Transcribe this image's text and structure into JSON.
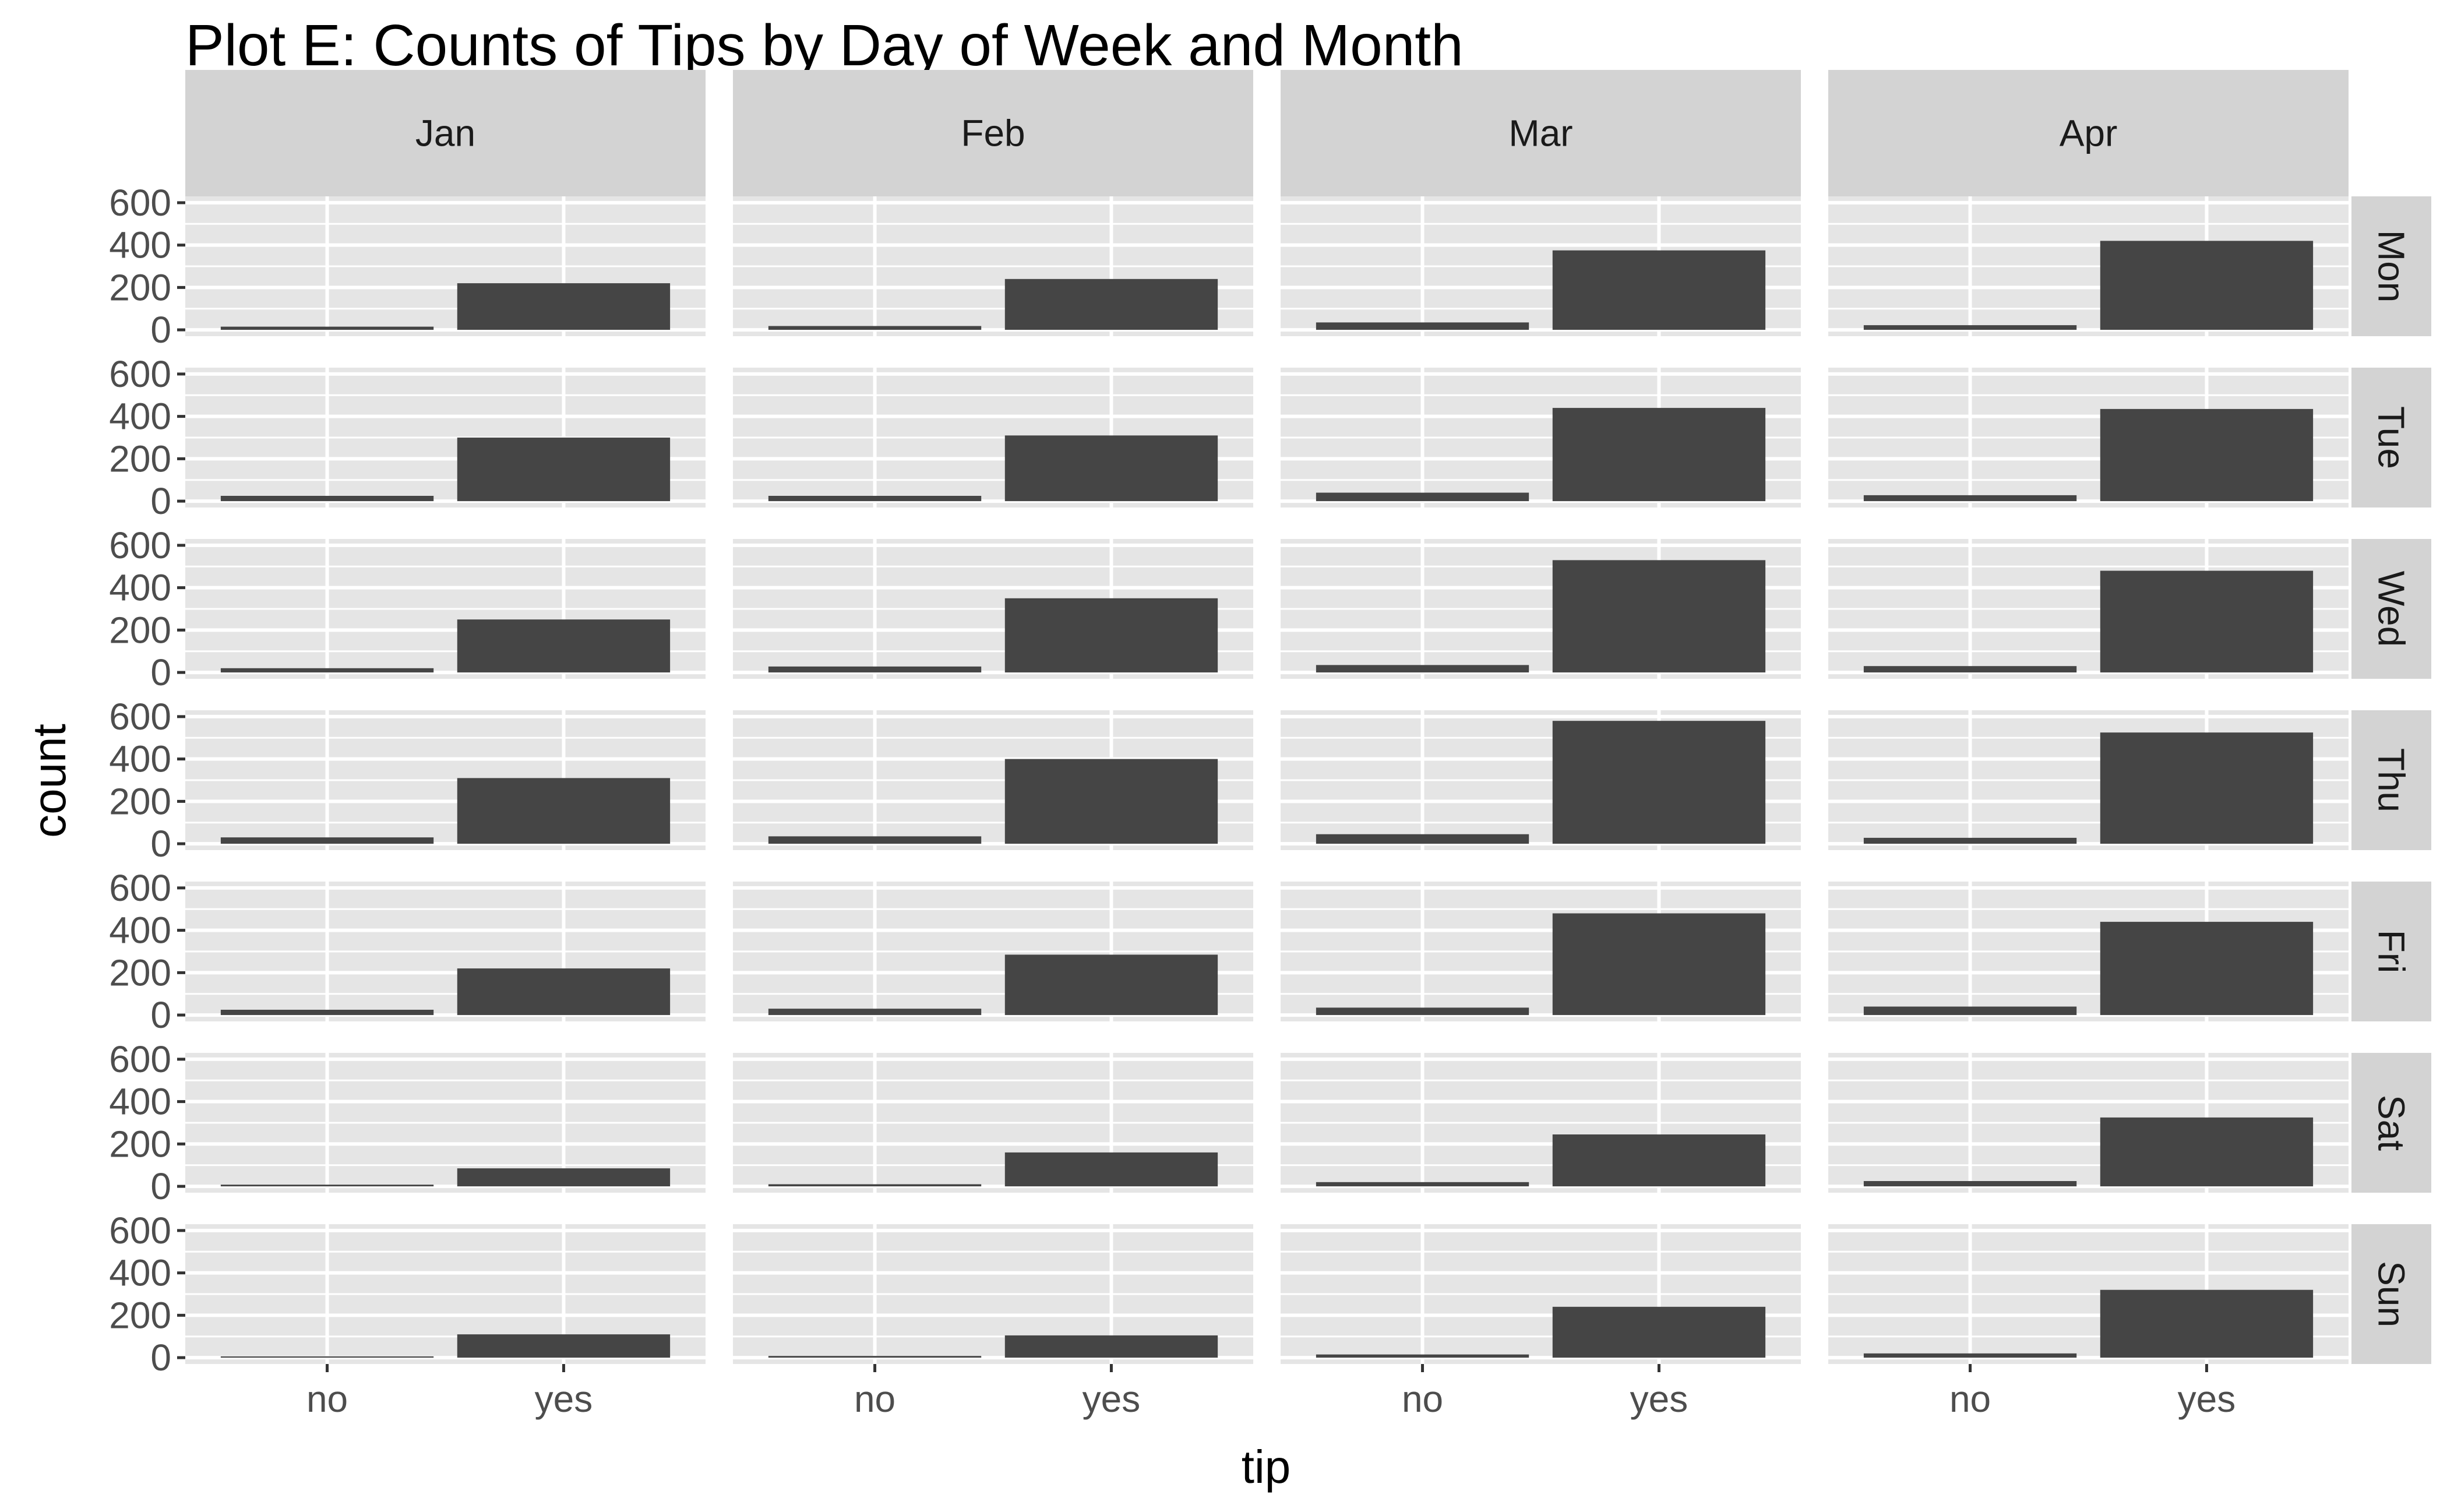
{
  "chart_data": {
    "type": "bar",
    "title": "Plot E: Counts of Tips by Day of Week and Month",
    "xlabel": "tip",
    "ylabel": "count",
    "facet_columns": [
      "Jan",
      "Feb",
      "Mar",
      "Apr"
    ],
    "facet_rows": [
      "Mon",
      "Tue",
      "Wed",
      "Thu",
      "Fri",
      "Sat",
      "Sun"
    ],
    "categories": [
      "no",
      "yes"
    ],
    "ylim": [
      0,
      600
    ],
    "yticks": [
      "0",
      "200",
      "400",
      "600"
    ],
    "grid": true,
    "colors": {
      "bar": "#454545",
      "panel_background": "#e5e5e5",
      "grid": "#ffffff",
      "strip_background": "#d3d3d3",
      "tick_label": "#4d4d4d"
    },
    "values": {
      "Mon": {
        "Jan": [
          15,
          220
        ],
        "Feb": [
          18,
          240
        ],
        "Mar": [
          35,
          375
        ],
        "Apr": [
          22,
          420
        ]
      },
      "Tue": {
        "Jan": [
          25,
          300
        ],
        "Feb": [
          25,
          310
        ],
        "Mar": [
          40,
          440
        ],
        "Apr": [
          28,
          435
        ]
      },
      "Wed": {
        "Jan": [
          20,
          250
        ],
        "Feb": [
          28,
          350
        ],
        "Mar": [
          35,
          530
        ],
        "Apr": [
          30,
          480
        ]
      },
      "Thu": {
        "Jan": [
          30,
          310
        ],
        "Feb": [
          35,
          400
        ],
        "Mar": [
          45,
          580
        ],
        "Apr": [
          28,
          525
        ]
      },
      "Fri": {
        "Jan": [
          25,
          220
        ],
        "Feb": [
          30,
          285
        ],
        "Mar": [
          35,
          480
        ],
        "Apr": [
          40,
          440
        ]
      },
      "Sat": {
        "Jan": [
          8,
          85
        ],
        "Feb": [
          10,
          160
        ],
        "Mar": [
          20,
          245
        ],
        "Apr": [
          25,
          325
        ]
      },
      "Sun": {
        "Jan": [
          6,
          110
        ],
        "Feb": [
          8,
          105
        ],
        "Mar": [
          15,
          240
        ],
        "Apr": [
          20,
          320
        ]
      }
    }
  }
}
